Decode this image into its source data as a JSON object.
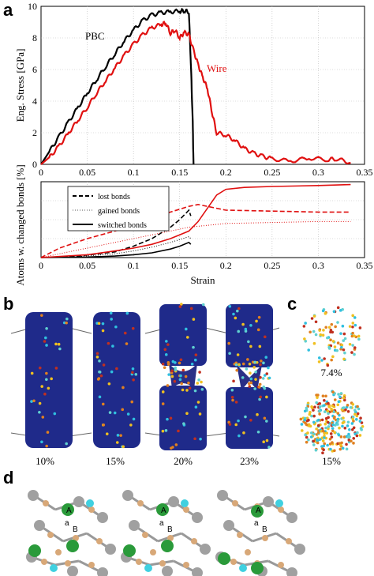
{
  "panels": {
    "a": "a",
    "b": "b",
    "c": "c",
    "d": "d"
  },
  "chart_data": [
    {
      "type": "line",
      "panel": "a-top",
      "ylabel": "Eng. Stress [GPa]",
      "xlim": [
        0,
        0.35
      ],
      "ylim": [
        0,
        10
      ],
      "xticks": [
        "0",
        "0.05",
        "0.1",
        "0.15",
        "0.2",
        "0.25",
        "0.3",
        "0.35"
      ],
      "yticks": [
        "0",
        "2",
        "4",
        "6",
        "8",
        "10"
      ],
      "grid": true,
      "series": [
        {
          "name": "PBC",
          "color": "#000000",
          "x": [
            0,
            0.01,
            0.02,
            0.03,
            0.04,
            0.05,
            0.06,
            0.07,
            0.08,
            0.09,
            0.1,
            0.11,
            0.12,
            0.13,
            0.14,
            0.15,
            0.155,
            0.16,
            0.162,
            0.164,
            0.165
          ],
          "y": [
            0,
            0.9,
            1.8,
            2.7,
            3.6,
            4.5,
            5.35,
            6.2,
            7.0,
            7.8,
            8.5,
            9.1,
            9.45,
            9.6,
            9.65,
            9.7,
            9.72,
            9.65,
            6.5,
            3.0,
            0.0
          ]
        },
        {
          "name": "Wire",
          "color": "#e01010",
          "x": [
            0,
            0.01,
            0.02,
            0.03,
            0.04,
            0.05,
            0.06,
            0.07,
            0.08,
            0.09,
            0.1,
            0.11,
            0.12,
            0.13,
            0.135,
            0.14,
            0.145,
            0.15,
            0.155,
            0.16,
            0.165,
            0.17,
            0.175,
            0.18,
            0.185,
            0.19,
            0.2,
            0.21,
            0.22,
            0.23,
            0.24,
            0.25,
            0.27,
            0.29,
            0.31,
            0.32,
            0.335
          ],
          "y": [
            0,
            0.5,
            1.2,
            2.0,
            2.8,
            3.6,
            4.5,
            5.3,
            6.1,
            6.9,
            7.6,
            8.2,
            8.65,
            8.85,
            8.95,
            8.3,
            8.5,
            8.0,
            8.35,
            8.2,
            7.2,
            6.3,
            5.5,
            4.8,
            3.3,
            2.0,
            1.85,
            1.5,
            1.0,
            0.7,
            0.5,
            0.35,
            0.2,
            0.4,
            0.3,
            0.35,
            0.1
          ]
        }
      ]
    },
    {
      "type": "line",
      "panel": "a-bottom",
      "xlabel": "Strain",
      "ylabel": "Atoms w. changed bonds [%]",
      "xlim": [
        0,
        0.35
      ],
      "ylim": [
        0,
        40
      ],
      "xticks": [
        "0",
        "0.05",
        "0.1",
        "0.15",
        "0.2",
        "0.25",
        "0.3",
        "0.35"
      ],
      "grid": true,
      "legend": [
        "lost bonds",
        "gained bonds",
        "switched bonds"
      ],
      "series": [
        {
          "name": "lost bonds",
          "color": "#000000",
          "style": "dashed",
          "x": [
            0,
            0.04,
            0.08,
            0.1,
            0.12,
            0.14,
            0.15,
            0.16,
            0.162
          ],
          "y": [
            0,
            0.8,
            3,
            6,
            10,
            16,
            20,
            25,
            22
          ]
        },
        {
          "name": "gained bonds",
          "color": "#000000",
          "style": "dotted",
          "x": [
            0,
            0.04,
            0.08,
            0.1,
            0.12,
            0.14,
            0.15,
            0.16,
            0.162
          ],
          "y": [
            0,
            0.5,
            2,
            3.5,
            5.5,
            8,
            9.5,
            11,
            10
          ]
        },
        {
          "name": "switched bonds",
          "color": "#000000",
          "style": "solid",
          "x": [
            0,
            0.05,
            0.08,
            0.1,
            0.12,
            0.14,
            0.15,
            0.16,
            0.162
          ],
          "y": [
            0,
            0.3,
            0.8,
            1.5,
            2.5,
            4.5,
            6,
            8,
            7
          ]
        },
        {
          "name": "",
          "color": "#e01010",
          "style": "dashed",
          "x": [
            0,
            0.02,
            0.05,
            0.08,
            0.1,
            0.12,
            0.14,
            0.16,
            0.17,
            0.18,
            0.2,
            0.25,
            0.3,
            0.335
          ],
          "y": [
            0,
            5,
            10,
            14,
            17,
            21,
            24,
            27,
            28,
            27,
            25,
            24.5,
            24,
            24
          ]
        },
        {
          "name": "",
          "color": "#e01010",
          "style": "dotted",
          "x": [
            0,
            0.02,
            0.05,
            0.08,
            0.1,
            0.12,
            0.14,
            0.16,
            0.18,
            0.2,
            0.25,
            0.3,
            0.335
          ],
          "y": [
            0,
            2,
            5,
            8,
            10,
            12,
            14,
            16,
            17,
            18,
            18.5,
            19,
            19
          ]
        },
        {
          "name": "",
          "color": "#e01010",
          "style": "solid",
          "x": [
            0,
            0.05,
            0.08,
            0.1,
            0.12,
            0.14,
            0.15,
            0.16,
            0.17,
            0.18,
            0.19,
            0.2,
            0.22,
            0.25,
            0.3,
            0.335
          ],
          "y": [
            0,
            1.5,
            3.5,
            5,
            7,
            10,
            12,
            14,
            19,
            26,
            33,
            36,
            37,
            37.5,
            38,
            38.5
          ]
        }
      ]
    }
  ],
  "panel_labels": {
    "pbc": "PBC",
    "wire": "Wire"
  },
  "panel_b": {
    "labels": [
      "10%",
      "15%",
      "20%",
      "23%"
    ]
  },
  "panel_c": {
    "labels": [
      "7.4%",
      "15%"
    ]
  },
  "panel_d": {
    "atom_labels": [
      "A",
      "a",
      "B",
      "A",
      "a",
      "B",
      "A",
      "a",
      "B"
    ]
  }
}
